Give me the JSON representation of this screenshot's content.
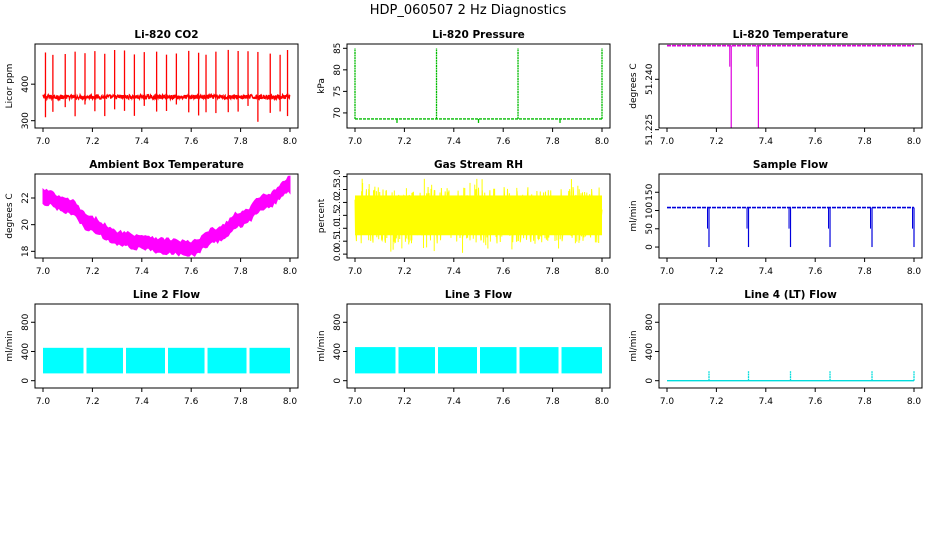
{
  "figure_title": "HDP_060507  2 Hz Diagnostics",
  "chart_data": [
    {
      "type": "line",
      "title": "Li-820 CO2",
      "ylabel": "Licor ppm",
      "color": "#ff0000",
      "xlim": [
        7.0,
        8.0
      ],
      "ylim": [
        280,
        510
      ],
      "xticks": [
        7.0,
        7.2,
        7.4,
        7.6,
        7.8,
        8.0
      ],
      "xtick_labels": [
        "7.0",
        "7.2",
        "7.4",
        "7.6",
        "7.8",
        "8.0"
      ],
      "yticks": [
        300,
        400
      ],
      "ytick_labels": [
        "300",
        "400"
      ],
      "pattern": "baseline_spikes",
      "baseline": 365,
      "noise": 6,
      "spike_max": 495,
      "spike_min": 290,
      "spikes": [
        7.01,
        7.04,
        7.09,
        7.13,
        7.17,
        7.21,
        7.25,
        7.29,
        7.33,
        7.37,
        7.41,
        7.46,
        7.5,
        7.54,
        7.59,
        7.63,
        7.66,
        7.7,
        7.75,
        7.79,
        7.83,
        7.87,
        7.92,
        7.96,
        7.99
      ]
    },
    {
      "type": "line",
      "title": "Li-820 Pressure",
      "ylabel": "kPa",
      "color": "#00bb00",
      "xlim": [
        7.0,
        8.0
      ],
      "ylim": [
        66.5,
        86
      ],
      "xticks": [
        7.0,
        7.2,
        7.4,
        7.6,
        7.8,
        8.0
      ],
      "xtick_labels": [
        "7.0",
        "7.2",
        "7.4",
        "7.6",
        "7.8",
        "8.0"
      ],
      "yticks": [
        70,
        75,
        80,
        85
      ],
      "ytick_labels": [
        "70",
        "75",
        "80",
        "85"
      ],
      "pattern": "flat_spikes",
      "baseline": 68.6,
      "spike_max": 85,
      "spikes": [
        7.0,
        7.33,
        7.66,
        8.0
      ],
      "minor_dips": [
        7.17,
        7.5,
        7.83
      ]
    },
    {
      "type": "line",
      "title": "Li-820 Temperature",
      "ylabel": "degrees C",
      "color": "#dd00dd",
      "xlim": [
        7.0,
        8.0
      ],
      "ylim": [
        51.2255,
        51.2505
      ],
      "xticks": [
        7.0,
        7.2,
        7.4,
        7.6,
        7.8,
        8.0
      ],
      "xtick_labels": [
        "7.0",
        "7.2",
        "7.4",
        "7.6",
        "7.8",
        "8.0"
      ],
      "yticks": [
        51.225,
        51.24
      ],
      "ytick_labels": [
        "51.225",
        "51.240"
      ],
      "pattern": "flat_dips",
      "baseline": 51.25,
      "dip_min": 51.2255,
      "dips": [
        7.26,
        7.37
      ]
    },
    {
      "type": "line",
      "title": "Ambient Box Temperature",
      "ylabel": "degrees C",
      "color": "#ff00ff",
      "xlim": [
        7.0,
        8.0
      ],
      "ylim": [
        17.5,
        23.8
      ],
      "xticks": [
        7.0,
        7.2,
        7.4,
        7.6,
        7.8,
        8.0
      ],
      "xtick_labels": [
        "7.0",
        "7.2",
        "7.4",
        "7.6",
        "7.8",
        "8.0"
      ],
      "yticks": [
        18,
        20,
        22
      ],
      "ytick_labels": [
        "18",
        "20",
        "22"
      ],
      "pattern": "band_curve",
      "half_band": 0.5,
      "curve": [
        [
          7.0,
          22.1
        ],
        [
          7.1,
          21.4
        ],
        [
          7.2,
          20.0
        ],
        [
          7.3,
          19.0
        ],
        [
          7.4,
          18.7
        ],
        [
          7.5,
          18.4
        ],
        [
          7.6,
          18.2
        ],
        [
          7.7,
          19.2
        ],
        [
          7.8,
          20.4
        ],
        [
          7.9,
          21.7
        ],
        [
          8.0,
          23.0
        ]
      ]
    },
    {
      "type": "line",
      "title": "Gas Stream RH",
      "ylabel": "percent",
      "color": "#ffff00",
      "xlim": [
        7.0,
        8.0
      ],
      "ylim": [
        -0.15,
        3.1
      ],
      "xticks": [
        7.0,
        7.2,
        7.4,
        7.6,
        7.8,
        8.0
      ],
      "xtick_labels": [
        "7.0",
        "7.2",
        "7.4",
        "7.6",
        "7.8",
        "8.0"
      ],
      "yticks": [
        0.0,
        0.5,
        1.0,
        1.5,
        2.0,
        2.5,
        3.0
      ],
      "ytick_labels": [
        "0.0",
        "0.5",
        "1.0",
        "1.5",
        "2.0",
        "2.5",
        "3.0"
      ],
      "pattern": "noise_band",
      "center": 1.5,
      "half_band": 1.1,
      "extreme_max": 2.95,
      "extreme_min": 0.05
    },
    {
      "type": "line",
      "title": "Sample Flow",
      "ylabel": "ml/min",
      "color": "#0000dd",
      "xlim": [
        7.0,
        8.0
      ],
      "ylim": [
        -30,
        200
      ],
      "xticks": [
        7.0,
        7.2,
        7.4,
        7.6,
        7.8,
        8.0
      ],
      "xtick_labels": [
        "7.0",
        "7.2",
        "7.4",
        "7.6",
        "7.8",
        "8.0"
      ],
      "yticks": [
        0,
        50,
        100,
        150
      ],
      "ytick_labels": [
        "0",
        "50",
        "100",
        "150"
      ],
      "pattern": "flat_dips",
      "baseline": 108,
      "dip_min": 0,
      "dips": [
        7.17,
        7.33,
        7.5,
        7.66,
        7.83,
        8.0
      ]
    },
    {
      "type": "area",
      "title": "Line 2 Flow",
      "ylabel": "ml/min",
      "color": "#00ffff",
      "xlim": [
        7.0,
        8.0
      ],
      "ylim": [
        -100,
        1050
      ],
      "xticks": [
        7.0,
        7.2,
        7.4,
        7.6,
        7.8,
        8.0
      ],
      "xtick_labels": [
        "7.0",
        "7.2",
        "7.4",
        "7.6",
        "7.8",
        "8.0"
      ],
      "yticks": [
        0,
        400,
        800
      ],
      "ytick_labels": [
        "0",
        "400",
        "800"
      ],
      "pattern": "band_gaps",
      "low": 100,
      "high": 450,
      "gaps": [
        7.17,
        7.33,
        7.5,
        7.66,
        7.83
      ]
    },
    {
      "type": "area",
      "title": "Line 3 Flow",
      "ylabel": "ml/min",
      "color": "#00ffff",
      "xlim": [
        7.0,
        8.0
      ],
      "ylim": [
        -100,
        1050
      ],
      "xticks": [
        7.0,
        7.2,
        7.4,
        7.6,
        7.8,
        8.0
      ],
      "xtick_labels": [
        "7.0",
        "7.2",
        "7.4",
        "7.6",
        "7.8",
        "8.0"
      ],
      "yticks": [
        0,
        400,
        800
      ],
      "ytick_labels": [
        "0",
        "400",
        "800"
      ],
      "pattern": "band_gaps",
      "low": 100,
      "high": 460,
      "gaps": [
        7.17,
        7.33,
        7.5,
        7.66,
        7.83
      ]
    },
    {
      "type": "line",
      "title": "Line 4 (LT) Flow",
      "ylabel": "ml/min",
      "color": "#00dddd",
      "xlim": [
        7.0,
        8.0
      ],
      "ylim": [
        -100,
        1050
      ],
      "xticks": [
        7.0,
        7.2,
        7.4,
        7.6,
        7.8,
        8.0
      ],
      "xtick_labels": [
        "7.0",
        "7.2",
        "7.4",
        "7.6",
        "7.8",
        "8.0"
      ],
      "yticks": [
        0,
        400,
        800
      ],
      "ytick_labels": [
        "0",
        "400",
        "800"
      ],
      "pattern": "flat_spikes",
      "baseline": 0,
      "spike_max": 130,
      "spikes": [
        7.17,
        7.33,
        7.5,
        7.66,
        7.83,
        8.0
      ]
    }
  ]
}
